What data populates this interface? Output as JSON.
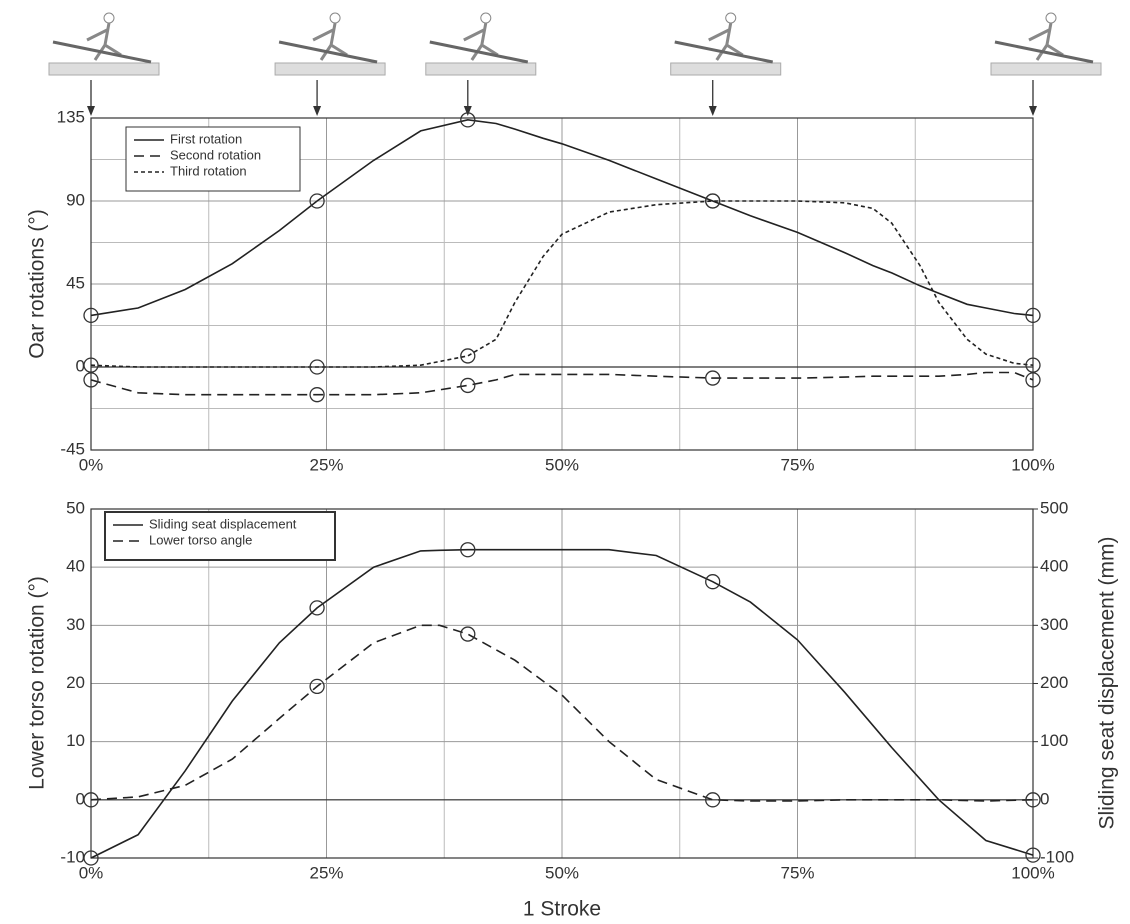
{
  "chart_data": [
    {
      "type": "line",
      "ylabel": "Oar rotations (°)",
      "x": [
        0,
        5,
        10,
        15,
        20,
        24,
        30,
        35,
        40,
        43,
        45,
        48,
        50,
        55,
        60,
        66,
        70,
        75,
        80,
        83,
        85,
        88,
        90,
        93,
        95,
        98,
        100
      ],
      "series": [
        {
          "name": "First rotation",
          "color": "#222222",
          "dash": "solid",
          "values": [
            28,
            32,
            42,
            56,
            74,
            90,
            112,
            128,
            134,
            132,
            129,
            124,
            121,
            112,
            102,
            90,
            82,
            73,
            62,
            55,
            51,
            44,
            40,
            34,
            32,
            29,
            28
          ]
        },
        {
          "name": "Second rotation",
          "color": "#222222",
          "dash": "dashed",
          "values": [
            -7,
            -14,
            -15,
            -15,
            -15,
            -15,
            -15,
            -14,
            -10,
            -7,
            -4,
            -4,
            -4,
            -4,
            -5,
            -6,
            -6,
            -6,
            -5.5,
            -5,
            -5,
            -5,
            -5,
            -4,
            -3,
            -3,
            -7
          ]
        },
        {
          "name": "Third rotation",
          "color": "#222222",
          "dash": "dotted",
          "values": [
            1,
            0,
            0,
            0,
            0,
            0,
            0,
            1,
            6,
            15,
            35,
            60,
            72,
            84,
            88,
            90,
            90,
            90,
            89,
            86,
            78,
            55,
            35,
            15,
            7,
            2,
            1
          ]
        }
      ],
      "stage_x": [
        0,
        24,
        40,
        66,
        100
      ],
      "xlim": [
        0,
        100
      ],
      "xticks": [
        {
          "value": 0,
          "label": "0%"
        },
        {
          "value": 25,
          "label": "25%"
        },
        {
          "value": 50,
          "label": "50%"
        },
        {
          "value": 75,
          "label": "75%"
        },
        {
          "value": 100,
          "label": "100%"
        }
      ],
      "xminor": [
        12.5,
        37.5,
        62.5,
        87.5
      ],
      "ylim": [
        -45,
        135
      ],
      "yticks": [
        -45,
        0,
        45,
        90,
        135
      ],
      "yminor": [
        -22.5,
        22.5,
        67.5,
        112.5
      ],
      "grid": true,
      "legend": "upper left"
    },
    {
      "type": "line",
      "xlabel": "1 Stroke",
      "ylabel": "Lower torso rotation (°)",
      "y2label": "Sliding seat displacement (mm)",
      "x": [
        0,
        5,
        10,
        15,
        20,
        24,
        30,
        35,
        37,
        40,
        45,
        50,
        55,
        60,
        66,
        70,
        75,
        80,
        85,
        90,
        95,
        100
      ],
      "series": [
        {
          "name": "Sliding seat displacement",
          "color": "#222222",
          "dash": "solid",
          "axis": "y2",
          "values": [
            -100,
            -60,
            50,
            170,
            270,
            330,
            400,
            428,
            429,
            430,
            430,
            430,
            430,
            420,
            375,
            340,
            275,
            185,
            90,
            0,
            -70,
            -95
          ]
        },
        {
          "name": "Lower torso angle",
          "color": "#222222",
          "dash": "dashed",
          "values": [
            0,
            0.5,
            2.5,
            7,
            14,
            19.5,
            27,
            30,
            30,
            28.5,
            24,
            18,
            10,
            3.5,
            0,
            -0.2,
            -0.2,
            0,
            0,
            0,
            -0.2,
            0
          ]
        }
      ],
      "stage_x": [
        0,
        24,
        40,
        66,
        100
      ],
      "xlim": [
        0,
        100
      ],
      "xticks": [
        {
          "value": 0,
          "label": "0%"
        },
        {
          "value": 25,
          "label": "25%"
        },
        {
          "value": 50,
          "label": "50%"
        },
        {
          "value": 75,
          "label": "75%"
        },
        {
          "value": 100,
          "label": "100%"
        }
      ],
      "xminor": [
        12.5,
        37.5,
        62.5,
        87.5
      ],
      "ylim": [
        -10,
        50
      ],
      "yticks": [
        -10,
        0,
        10,
        20,
        30,
        40,
        50
      ],
      "y2lim": [
        -100,
        500
      ],
      "y2ticks": [
        -100,
        0,
        100,
        200,
        300,
        400,
        500
      ],
      "grid": true,
      "legend": "upper left"
    }
  ]
}
